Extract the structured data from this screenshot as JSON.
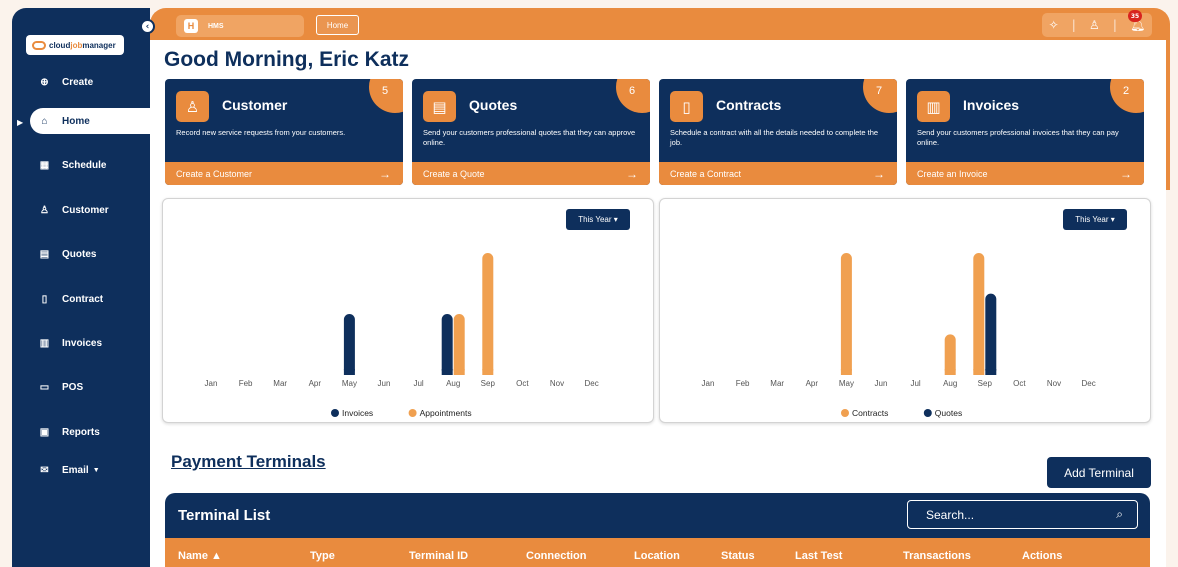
{
  "app": {
    "crumb_app": "HMS",
    "crumb_app_letter": "H",
    "crumb_page": "Home",
    "notification_count": "35"
  },
  "logo": {
    "text_main": "cloud",
    "text_accent": "job",
    "text_end": "manager"
  },
  "sidebar": {
    "items": [
      {
        "label": "Create",
        "icon": "plus-circle-icon"
      },
      {
        "label": "Home",
        "icon": "home-icon"
      },
      {
        "label": "Schedule",
        "icon": "calendar-icon"
      },
      {
        "label": "Customer",
        "icon": "user-icon"
      },
      {
        "label": "Quotes",
        "icon": "clipboard-icon"
      },
      {
        "label": "Contract",
        "icon": "document-icon"
      },
      {
        "label": "Invoices",
        "icon": "invoice-icon"
      },
      {
        "label": "POS",
        "icon": "card-icon"
      },
      {
        "label": "Reports",
        "icon": "report-icon"
      },
      {
        "label": "Email",
        "icon": "email-icon"
      }
    ]
  },
  "greeting": "Good Morning, Eric Katz",
  "cards": [
    {
      "title": "Customer",
      "count": "5",
      "desc": "Record new service requests from your customers.",
      "action": "Create a Customer",
      "icon": "user-icon"
    },
    {
      "title": "Quotes",
      "count": "6",
      "desc": "Send your customers professional quotes that they can approve online.",
      "action": "Create a Quote",
      "icon": "clipboard-icon"
    },
    {
      "title": "Contracts",
      "count": "7",
      "desc": "Schedule a contract with all the details needed to complete the job.",
      "action": "Create a Contract",
      "icon": "document-icon"
    },
    {
      "title": "Invoices",
      "count": "2",
      "desc": "Send your customers professional invoices that they can pay online.",
      "action": "Create an Invoice",
      "icon": "invoice-icon"
    }
  ],
  "colors": {
    "navy": "#0e2f5c",
    "orange": "#e98b3e",
    "bar_orange": "#f0a050"
  },
  "chart_data": [
    {
      "type": "bar",
      "period": "This Year",
      "categories": [
        "Jan",
        "Feb",
        "Mar",
        "Apr",
        "May",
        "Jun",
        "Jul",
        "Aug",
        "Sep",
        "Oct",
        "Nov",
        "Dec"
      ],
      "series": [
        {
          "name": "Invoices",
          "color": "#0e2f5c",
          "values": [
            0,
            0,
            0,
            0,
            1,
            0,
            0,
            1,
            0,
            0,
            0,
            0
          ]
        },
        {
          "name": "Appointments",
          "color": "#f0a050",
          "values": [
            0,
            0,
            0,
            0,
            0,
            0,
            0,
            1,
            2,
            0,
            0,
            0
          ]
        }
      ],
      "ylim": [
        0,
        2
      ]
    },
    {
      "type": "bar",
      "period": "This Year",
      "categories": [
        "Jan",
        "Feb",
        "Mar",
        "Apr",
        "May",
        "Jun",
        "Jul",
        "Aug",
        "Sep",
        "Oct",
        "Nov",
        "Dec"
      ],
      "series": [
        {
          "name": "Contracts",
          "color": "#f0a050",
          "values": [
            0,
            0,
            0,
            0,
            3,
            0,
            0,
            1,
            3,
            0,
            0,
            0
          ]
        },
        {
          "name": "Quotes",
          "color": "#0e2f5c",
          "values": [
            0,
            0,
            0,
            0,
            0,
            0,
            0,
            0,
            2,
            0,
            0,
            0
          ]
        }
      ],
      "ylim": [
        0,
        3
      ]
    }
  ],
  "payments": {
    "title": "Payment Terminals",
    "add_button": "Add Terminal",
    "list_title": "Terminal List",
    "search_placeholder": "Search...",
    "columns": [
      "Name ▲",
      "Type",
      "Terminal ID",
      "Connection",
      "Location",
      "Status",
      "Last Test",
      "Transactions",
      "Actions"
    ]
  }
}
